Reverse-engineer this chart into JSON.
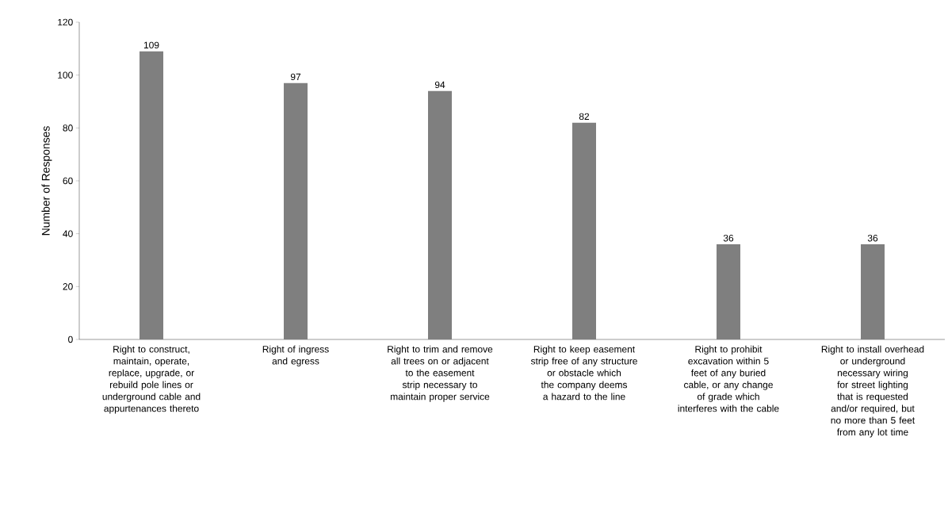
{
  "chart_data": {
    "type": "bar",
    "ylabel": "Number of Responses",
    "categories": [
      "Right to construct, maintain, operate, replace, upgrade, or rebuild pole lines or underground cable and appurtenances thereto",
      "Right of ingress and egress",
      "Right to trim and remove all trees on or adjacent to the easement strip necessary to maintain proper service",
      "Right to keep easement strip free of any structure or obstacle which the company deems a hazard to the line",
      "Right to prohibit excavation within 5 feet of any buried cable, or any change of grade which interferes with the cable",
      "Right to install overhead or underground necessary wiring for street lighting that is requested and/or required, but no more than 5 feet from any lot time"
    ],
    "values": [
      109,
      97,
      94,
      82,
      36,
      36
    ],
    "color": "#7f7f7f",
    "ylim": [
      0,
      120
    ],
    "yticks": [
      0,
      20,
      40,
      60,
      80,
      100,
      120
    ],
    "data_labels": true
  }
}
